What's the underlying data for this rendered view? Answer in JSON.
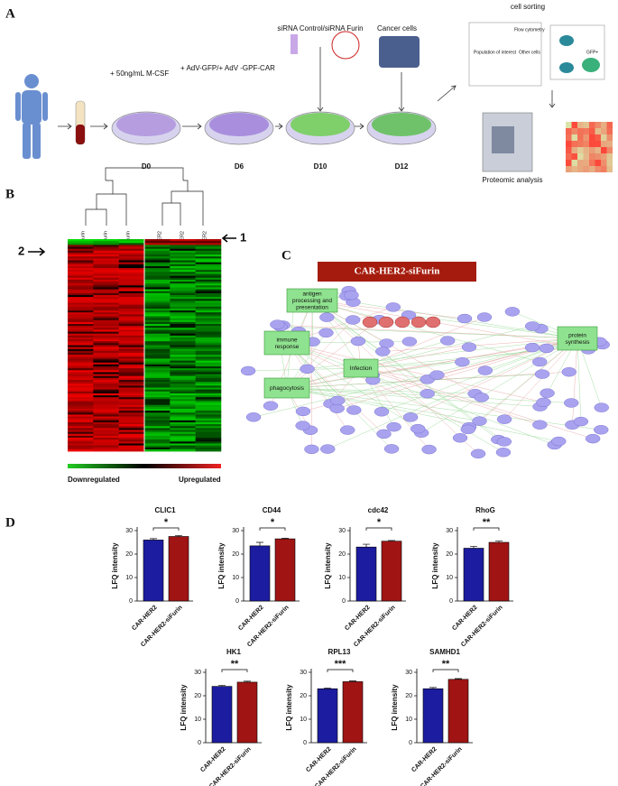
{
  "figure": {
    "panel_a": {
      "label": "A",
      "step_labels": [
        "+ 50ng/mL M-CSF",
        "+ AdV-GFP/+ AdV -GPF-CAR",
        "siRNA Control/siRNA Furin",
        "Cancer cells"
      ],
      "days": [
        "D0",
        "D6",
        "D10",
        "D12"
      ],
      "sorting_title": "cell sorting",
      "sorting_labels": [
        "Flow cytometry",
        "Population of interest",
        "Other cells",
        "GFP+"
      ],
      "proteomics": "Proteomic analysis"
    },
    "panel_b": {
      "label": "B",
      "columns": [
        "CAR-HER2-siFurin",
        "CAR-HER2-siFurin",
        "CAR-HER2-siFurin",
        "CAR-HER2",
        "CAR-HER2",
        "CAR-HER2"
      ],
      "markers": [
        "1",
        "2"
      ],
      "legend": [
        "Downregulated",
        "Upregulated"
      ]
    },
    "panel_c": {
      "label": "C",
      "title": "CAR-HER2-siFurin",
      "hubs": [
        "antigen processing and presentation",
        "immune response",
        "phagocytosis",
        "Infection",
        "protein synthesis"
      ]
    },
    "panel_d": {
      "label": "D"
    }
  },
  "chart_data": [
    {
      "type": "bar",
      "title": "CLIC1",
      "ylabel": "LFQ intensity",
      "categories": [
        "CAR-HER2",
        "CAR-HER2-siFurin"
      ],
      "values": [
        26,
        27.5
      ],
      "errors": [
        0.6,
        0.4
      ],
      "colors": [
        "#1c1ca0",
        "#a01414"
      ],
      "ylim": [
        0,
        30
      ],
      "yticks": [
        0,
        10,
        20,
        30
      ],
      "significance": "*"
    },
    {
      "type": "bar",
      "title": "CD44",
      "ylabel": "LFQ intensity",
      "categories": [
        "CAR-HER2",
        "CAR-HER2-siFurin"
      ],
      "values": [
        23.5,
        26.5
      ],
      "errors": [
        1.5,
        0.3
      ],
      "colors": [
        "#1c1ca0",
        "#a01414"
      ],
      "ylim": [
        0,
        30
      ],
      "yticks": [
        0,
        10,
        20,
        30
      ],
      "significance": "*"
    },
    {
      "type": "bar",
      "title": "cdc42",
      "ylabel": "LFQ intensity",
      "categories": [
        "CAR-HER2",
        "CAR-HER2-siFurin"
      ],
      "values": [
        23,
        25.5
      ],
      "errors": [
        1.2,
        0.3
      ],
      "colors": [
        "#1c1ca0",
        "#a01414"
      ],
      "ylim": [
        0,
        30
      ],
      "yticks": [
        0,
        10,
        20,
        30
      ],
      "significance": "*"
    },
    {
      "type": "bar",
      "title": "RhoG",
      "ylabel": "LFQ intensity",
      "categories": [
        "CAR-HER2",
        "CAR-HER2-siFurin"
      ],
      "values": [
        22.5,
        25
      ],
      "errors": [
        0.8,
        0.5
      ],
      "colors": [
        "#1c1ca0",
        "#a01414"
      ],
      "ylim": [
        0,
        30
      ],
      "yticks": [
        0,
        10,
        20,
        30
      ],
      "significance": "**"
    },
    {
      "type": "bar",
      "title": "HK1",
      "ylabel": "LFQ intensity",
      "categories": [
        "CAR-HER2",
        "CAR-HER2-siFurin"
      ],
      "values": [
        24,
        25.8
      ],
      "errors": [
        0.4,
        0.4
      ],
      "colors": [
        "#1c1ca0",
        "#a01414"
      ],
      "ylim": [
        0,
        30
      ],
      "yticks": [
        0,
        10,
        20,
        30
      ],
      "significance": "**"
    },
    {
      "type": "bar",
      "title": "RPL13",
      "ylabel": "LFQ intensity",
      "categories": [
        "CAR-HER2",
        "CAR-HER2-siFurin"
      ],
      "values": [
        23,
        26
      ],
      "errors": [
        0.3,
        0.3
      ],
      "colors": [
        "#1c1ca0",
        "#a01414"
      ],
      "ylim": [
        0,
        30
      ],
      "yticks": [
        0,
        10,
        20,
        30
      ],
      "significance": "***"
    },
    {
      "type": "bar",
      "title": "SAMHD1",
      "ylabel": "LFQ intensity",
      "categories": [
        "CAR-HER2",
        "CAR-HER2-siFurin"
      ],
      "values": [
        23,
        27
      ],
      "errors": [
        0.5,
        0.3
      ],
      "colors": [
        "#1c1ca0",
        "#a01414"
      ],
      "ylim": [
        0,
        30
      ],
      "yticks": [
        0,
        10,
        20,
        30
      ],
      "significance": "**"
    }
  ]
}
